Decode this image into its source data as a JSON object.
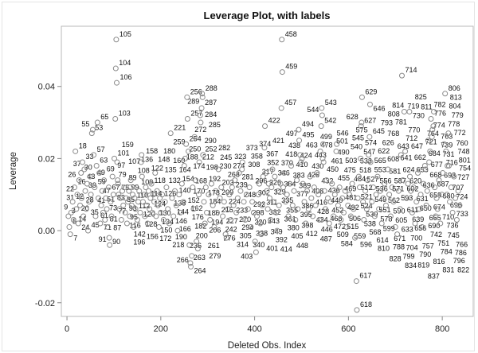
{
  "chart_data": {
    "type": "scatter",
    "title": "Leverage Plot, with labels",
    "xlabel": "Deleted Obs. Index",
    "ylabel": "Leverage",
    "xlim": [
      -12,
      866
    ],
    "ylim": [
      -0.0238,
      0.0567
    ],
    "xticks": [
      0,
      200,
      400,
      600,
      800
    ],
    "yticks": [
      -0.02,
      0.0,
      0.02,
      0.04
    ],
    "ytick_labels": [
      "-0.02",
      "0.00",
      "0.02",
      "0.04"
    ],
    "xtick_labels": [
      "0",
      "200",
      "400",
      "600",
      "800"
    ],
    "grid": false,
    "marker": "open-circle",
    "marker_color": "#8a8a8a",
    "point_labels": "observation index",
    "points": [
      [
        3,
        0.004
      ],
      [
        5,
        0.001
      ],
      [
        7,
        -0.001
      ],
      [
        9,
        0.005
      ],
      [
        12,
        0.008
      ],
      [
        14,
        0.003
      ],
      [
        16,
        0.012
      ],
      [
        18,
        0.022
      ],
      [
        20,
        0.006
      ],
      [
        22,
        0.01
      ],
      [
        24,
        0.002
      ],
      [
        26,
        0.014
      ],
      [
        28,
        0.007
      ],
      [
        30,
        0.016
      ],
      [
        31,
        0.009
      ],
      [
        33,
        0.019
      ],
      [
        35,
        0.004
      ],
      [
        37,
        0.017
      ],
      [
        39,
        0.011
      ],
      [
        41,
        0.006
      ],
      [
        43,
        0.013
      ],
      [
        45,
        0.0
      ],
      [
        47,
        0.008
      ],
      [
        49,
        0.015
      ],
      [
        51,
        0.01
      ],
      [
        53,
        0.027
      ],
      [
        55,
        0.028
      ],
      [
        57,
        0.021
      ],
      [
        59,
        0.012
      ],
      [
        61,
        0.004
      ],
      [
        63,
        0.018
      ],
      [
        65,
        0.03
      ],
      [
        67,
        0.009
      ],
      [
        69,
        0.016
      ],
      [
        71,
        0.002
      ],
      [
        73,
        0.007
      ],
      [
        75,
        0.011
      ],
      [
        77,
        0.005
      ],
      [
        79,
        0.014
      ],
      [
        81,
        0.003
      ],
      [
        83,
        0.009
      ],
      [
        85,
        0.006
      ],
      [
        87,
        0.001
      ],
      [
        89,
        0.012
      ],
      [
        90,
        -0.002
      ],
      [
        91,
        -0.004
      ],
      [
        93,
        0.008
      ],
      [
        95,
        0.004
      ],
      [
        97,
        0.015
      ],
      [
        99,
        0.01
      ],
      [
        101,
        0.02
      ],
      [
        103,
        0.031
      ],
      [
        104,
        0.045
      ],
      [
        105,
        0.053
      ],
      [
        106,
        0.041
      ],
      [
        107,
        0.019
      ],
      [
        108,
        0.014
      ],
      [
        109,
        0.013
      ],
      [
        110,
        0.01
      ],
      [
        112,
        0.006
      ],
      [
        114,
        0.009
      ],
      [
        116,
        0.003
      ],
      [
        118,
        0.011
      ],
      [
        120,
        0.007
      ],
      [
        122,
        0.012
      ],
      [
        124,
        0.005
      ],
      [
        126,
        0.009
      ],
      [
        128,
        0.002
      ],
      [
        130,
        0.008
      ],
      [
        132,
        0.011
      ],
      [
        134,
        0.004
      ],
      [
        135,
        0.012
      ],
      [
        136,
        0.014
      ],
      [
        138,
        0.007
      ],
      [
        140,
        0.01
      ],
      [
        142,
        0.001
      ],
      [
        144,
        0.009
      ],
      [
        146,
        0.006
      ],
      [
        148,
        0.012
      ],
      [
        150,
        0.003
      ],
      [
        152,
        0.008
      ],
      [
        154,
        0.011
      ],
      [
        156,
        0.005
      ],
      [
        158,
        0.019
      ],
      [
        159,
        0.021
      ],
      [
        160,
        0.015
      ],
      [
        162,
        0.008
      ],
      [
        164,
        0.01
      ],
      [
        166,
        0.004
      ],
      [
        168,
        0.012
      ],
      [
        170,
        0.007
      ],
      [
        172,
        0.002
      ],
      [
        174,
        0.011
      ],
      [
        176,
        0.006
      ],
      [
        178,
        0.009
      ],
      [
        180,
        0.013
      ],
      [
        182,
        0.005
      ],
      [
        184,
        0.01
      ],
      [
        186,
        0.008
      ],
      [
        188,
        0.016
      ],
      [
        190,
        0.004
      ],
      [
        192,
        0.011
      ],
      [
        194,
        0.007
      ],
      [
        196,
        0.001
      ],
      [
        198,
        0.009
      ],
      [
        200,
        0.005
      ],
      [
        203,
        0.01
      ],
      [
        206,
        0.003
      ],
      [
        209,
        0.008
      ],
      [
        212,
        0.012
      ],
      [
        215,
        0.006
      ],
      [
        218,
        0.002
      ],
      [
        221,
        0.027
      ],
      [
        224,
        0.009
      ],
      [
        227,
        0.004
      ],
      [
        230,
        0.011
      ],
      [
        233,
        0.007
      ],
      [
        236,
        0.0
      ],
      [
        239,
        0.01
      ],
      [
        242,
        0.005
      ],
      [
        245,
        0.013
      ],
      [
        248,
        0.008
      ],
      [
        250,
        0.018
      ],
      [
        252,
        0.02
      ],
      [
        254,
        0.024
      ],
      [
        256,
        0.037
      ],
      [
        257,
        0.031
      ],
      [
        259,
        0.022
      ],
      [
        261,
        -0.004
      ],
      [
        263,
        -0.009
      ],
      [
        264,
        -0.01
      ],
      [
        266,
        -0.007
      ],
      [
        268,
        0.012
      ],
      [
        270,
        0.006
      ],
      [
        272,
        0.026
      ],
      [
        274,
        0.014
      ],
      [
        276,
        -0.003
      ],
      [
        279,
        -0.005
      ],
      [
        281,
        0.01
      ],
      [
        282,
        0.019
      ],
      [
        284,
        0.032
      ],
      [
        285,
        0.03
      ],
      [
        287,
        0.034
      ],
      [
        288,
        0.038
      ],
      [
        289,
        0.037
      ],
      [
        290,
        0.021
      ],
      [
        292,
        0.008
      ],
      [
        294,
        0.002
      ],
      [
        296,
        0.012
      ],
      [
        298,
        0.005
      ],
      [
        302,
        0.01
      ],
      [
        305,
        0.003
      ],
      [
        308,
        0.013
      ],
      [
        311,
        0.007
      ],
      [
        314,
        0.001
      ],
      [
        317,
        0.011
      ],
      [
        320,
        0.005
      ],
      [
        323,
        0.017
      ],
      [
        326,
        0.009
      ],
      [
        329,
        0.012
      ],
      [
        332,
        0.004
      ],
      [
        335,
        0.008
      ],
      [
        338,
        -0.001
      ],
      [
        340,
        -0.002
      ],
      [
        343,
        0.006
      ],
      [
        346,
        0.01
      ],
      [
        349,
        0.003
      ],
      [
        352,
        0.012
      ],
      [
        355,
        0.007
      ],
      [
        358,
        0.014
      ],
      [
        361,
        0.005
      ],
      [
        364,
        0.009
      ],
      [
        367,
        0.016
      ],
      [
        370,
        0.011
      ],
      [
        373,
        0.017
      ],
      [
        374,
        0.019
      ],
      [
        377,
        0.008
      ],
      [
        380,
        0.003
      ],
      [
        383,
        0.01
      ],
      [
        386,
        0.006
      ],
      [
        389,
        0.012
      ],
      [
        392,
        0.001
      ],
      [
        395,
        0.008
      ],
      [
        398,
        0.005
      ],
      [
        401,
        -0.003
      ],
      [
        403,
        -0.006
      ],
      [
        405,
        0.004
      ],
      [
        408,
        0.01
      ],
      [
        410,
        0.013
      ],
      [
        412,
        0.002
      ],
      [
        414,
        -0.001
      ],
      [
        416,
        0.007
      ],
      [
        418,
        0.015
      ],
      [
        421,
        0.023
      ],
      [
        422,
        0.029
      ],
      [
        424,
        0.016
      ],
      [
        426,
        0.011
      ],
      [
        428,
        0.006
      ],
      [
        430,
        0.013
      ],
      [
        432,
        0.009
      ],
      [
        434,
        0.003
      ],
      [
        436,
        0.012
      ],
      [
        438,
        0.017
      ],
      [
        440,
        0.008
      ],
      [
        443,
        0.015
      ],
      [
        446,
        0.005
      ],
      [
        448,
        0.0
      ],
      [
        450,
        0.011
      ],
      [
        452,
        0.007
      ],
      [
        455,
        0.013
      ],
      [
        457,
        0.034
      ],
      [
        458,
        0.053
      ],
      [
        459,
        0.044
      ],
      [
        461,
        0.012
      ],
      [
        463,
        0.016
      ],
      [
        466,
        0.008
      ],
      [
        469,
        0.01
      ],
      [
        472,
        0.004
      ],
      [
        475,
        0.013
      ],
      [
        478,
        0.018
      ],
      [
        481,
        0.007
      ],
      [
        484,
        0.011
      ],
      [
        487,
        0.003
      ],
      [
        490,
        0.014
      ],
      [
        492,
        0.006
      ],
      [
        494,
        0.028
      ],
      [
        495,
        0.025
      ],
      [
        497,
        0.021
      ],
      [
        499,
        0.019
      ],
      [
        501,
        0.02
      ],
      [
        503,
        0.013
      ],
      [
        506,
        0.008
      ],
      [
        509,
        0.002
      ],
      [
        512,
        0.011
      ],
      [
        515,
        0.006
      ],
      [
        518,
        0.015
      ],
      [
        521,
        0.009
      ],
      [
        524,
        0.004
      ],
      [
        527,
        0.012
      ],
      [
        530,
        0.007
      ],
      [
        533,
        0.016
      ],
      [
        536,
        0.01
      ],
      [
        538,
        0.003
      ],
      [
        540,
        0.022
      ],
      [
        542,
        0.029
      ],
      [
        543,
        0.034
      ],
      [
        544,
        0.032
      ],
      [
        545,
        0.02
      ],
      [
        546,
        0.024
      ],
      [
        547,
        0.019
      ],
      [
        549,
        0.011
      ],
      [
        551,
        0.006
      ],
      [
        553,
        0.014
      ],
      [
        556,
        0.009
      ],
      [
        559,
        0.002
      ],
      [
        562,
        0.008
      ],
      [
        565,
        0.013
      ],
      [
        568,
        0.004
      ],
      [
        571,
        0.01
      ],
      [
        574,
        0.022
      ],
      [
        575,
        0.024
      ],
      [
        578,
        0.007
      ],
      [
        581,
        0.012
      ],
      [
        584,
        0.003
      ],
      [
        587,
        0.009
      ],
      [
        590,
        0.005
      ],
      [
        593,
        0.011
      ],
      [
        596,
        0.001
      ],
      [
        599,
        0.007
      ],
      [
        602,
        0.01
      ],
      [
        605,
        0.004
      ],
      [
        608,
        0.013
      ],
      [
        611,
        0.006
      ],
      [
        614,
        -0.002
      ],
      [
        617,
        -0.014
      ],
      [
        618,
        -0.022
      ],
      [
        620,
        0.009
      ],
      [
        622,
        0.015
      ],
      [
        624,
        0.012
      ],
      [
        626,
        0.02
      ],
      [
        627,
        0.029
      ],
      [
        628,
        0.03
      ],
      [
        629,
        0.037
      ],
      [
        631,
        0.008
      ],
      [
        633,
        0.003
      ],
      [
        636,
        0.011
      ],
      [
        639,
        0.006
      ],
      [
        641,
        0.014
      ],
      [
        643,
        0.021
      ],
      [
        645,
        0.026
      ],
      [
        646,
        0.035
      ],
      [
        647,
        0.019
      ],
      [
        650,
        0.008
      ],
      [
        653,
        0.012
      ],
      [
        656,
        0.004
      ],
      [
        659,
        0.01
      ],
      [
        662,
        0.015
      ],
      [
        665,
        0.006
      ],
      [
        668,
        0.011
      ],
      [
        671,
        0.002
      ],
      [
        674,
        0.009
      ],
      [
        677,
        0.013
      ],
      [
        680,
        0.007
      ],
      [
        684,
        0.017
      ],
      [
        687,
        0.01
      ],
      [
        690,
        0.004
      ],
      [
        693,
        0.012
      ],
      [
        696,
        0.008
      ],
      [
        700,
        0.001
      ],
      [
        704,
        -0.001
      ],
      [
        707,
        0.011
      ],
      [
        710,
        0.006
      ],
      [
        712,
        0.021
      ],
      [
        714,
        0.043
      ],
      [
        716,
        0.014
      ],
      [
        719,
        0.033
      ],
      [
        721,
        0.022
      ],
      [
        724,
        0.009
      ],
      [
        727,
        0.013
      ],
      [
        730,
        0.033
      ],
      [
        731,
        0.015
      ],
      [
        733,
        0.011
      ],
      [
        736,
        0.005
      ],
      [
        739,
        0.012
      ],
      [
        742,
        0.002
      ],
      [
        745,
        0.008
      ],
      [
        748,
        0.016
      ],
      [
        751,
        0.006
      ],
      [
        754,
        0.01
      ],
      [
        757,
        0.001
      ],
      [
        760,
        0.013
      ],
      [
        763,
        0.018
      ],
      [
        764,
        0.017
      ],
      [
        766,
        0.007
      ],
      [
        768,
        0.011
      ],
      [
        770,
        0.025
      ],
      [
        772,
        0.019
      ],
      [
        774,
        0.022
      ],
      [
        776,
        0.031
      ],
      [
        778,
        0.026
      ],
      [
        779,
        0.028
      ],
      [
        781,
        0.029
      ],
      [
        782,
        0.033
      ],
      [
        784,
        0.012
      ],
      [
        786,
        0.004
      ],
      [
        788,
        0.009
      ],
      [
        790,
        0.006
      ],
      [
        793,
        0.014
      ],
      [
        796,
        0.002
      ],
      [
        799,
        0.01
      ],
      [
        801,
        0.016
      ],
      [
        804,
        0.024
      ],
      [
        806,
        0.038
      ],
      [
        808,
        0.022
      ],
      [
        810,
        0.01
      ],
      [
        811,
        0.018
      ],
      [
        813,
        0.027
      ],
      [
        814,
        0.018
      ],
      [
        816,
        0.008
      ],
      [
        819,
        0.012
      ],
      [
        822,
        0.005
      ],
      [
        825,
        0.015
      ],
      [
        828,
        0.009
      ],
      [
        831,
        0.003
      ],
      [
        834,
        0.011
      ],
      [
        837,
        0.007
      ]
    ]
  }
}
